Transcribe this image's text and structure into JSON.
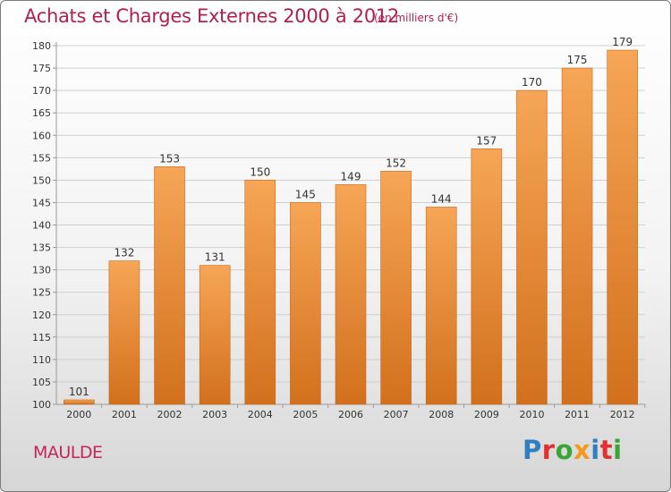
{
  "header": {
    "title": "Achats et Charges Externes 2000 à 2012",
    "subtitle": "(en milliers d'€)"
  },
  "footer": {
    "commune": "MAULDE",
    "logo_text": "Proxiti",
    "logo_letters": [
      {
        "ch": "P",
        "color": "#2f7fc1"
      },
      {
        "ch": "r",
        "color": "#e2302e"
      },
      {
        "ch": "o",
        "color": "#3aa535"
      },
      {
        "ch": "x",
        "color": "#f39a1e"
      },
      {
        "ch": "i",
        "color": "#2f7fc1"
      },
      {
        "ch": "t",
        "color": "#e2302e"
      },
      {
        "ch": "i",
        "color": "#3aa535"
      }
    ]
  },
  "colors": {
    "bar_light": "#f6a656",
    "bar_dark": "#d2701d",
    "title": "#b0204f",
    "grid": "#cfcfcf",
    "axis": "#9a9a9a"
  },
  "chart_data": {
    "type": "bar",
    "title": "Achats et Charges Externes 2000 à 2012",
    "subtitle": "(en milliers d'€)",
    "categories": [
      "2000",
      "2001",
      "2002",
      "2003",
      "2004",
      "2005",
      "2006",
      "2007",
      "2008",
      "2009",
      "2010",
      "2011",
      "2012"
    ],
    "values": [
      101,
      132,
      153,
      131,
      150,
      145,
      149,
      152,
      144,
      157,
      170,
      175,
      179
    ],
    "ylim": [
      100,
      180
    ],
    "yticks": [
      100,
      105,
      110,
      115,
      120,
      125,
      130,
      135,
      140,
      145,
      150,
      155,
      160,
      165,
      170,
      175,
      180
    ],
    "grid": true,
    "xlabel": "",
    "ylabel": ""
  }
}
